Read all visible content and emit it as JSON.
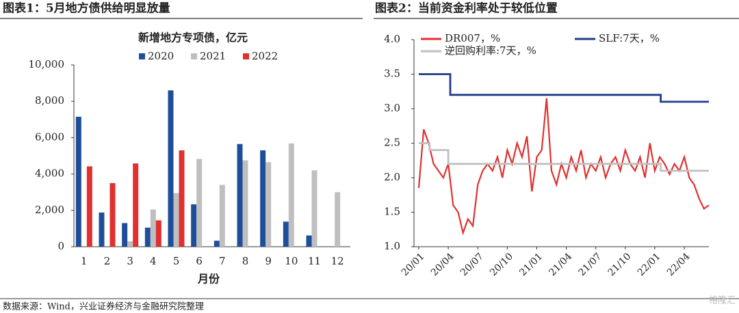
{
  "header_left": "图表1：5月地方债供给明显放量",
  "header_right": "图表2：当前资金利率处于较低位置",
  "source": "数据来源：Wind，兴业证券经济与金融研究院整理",
  "watermark": "格隆汇",
  "chart_data": [
    {
      "type": "bar",
      "title": "新增地方专项债，亿元",
      "xlabel": "月份",
      "categories": [
        "1",
        "2",
        "3",
        "4",
        "5",
        "6",
        "7",
        "8",
        "9",
        "10",
        "11",
        "12"
      ],
      "series": [
        {
          "name": "2020",
          "color": "#1f4e99",
          "values": [
            7150,
            1880,
            1300,
            1050,
            8600,
            2330,
            330,
            5650,
            5300,
            1380,
            620,
            0
          ]
        },
        {
          "name": "2021",
          "color": "#bfbfbf",
          "values": [
            0,
            0,
            300,
            2050,
            2950,
            4830,
            3400,
            4750,
            4650,
            5680,
            4200,
            3000
          ]
        },
        {
          "name": "2022",
          "color": "#e03030",
          "values": [
            4420,
            3500,
            4580,
            1450,
            5300,
            null,
            null,
            null,
            null,
            null,
            null,
            null
          ]
        }
      ],
      "ylim": [
        0,
        10000
      ],
      "yticks": [
        0,
        {
          "value": 2000,
          "label": "2,000"
        },
        {
          "value": 4000,
          "label": "4,000"
        },
        {
          "value": 6000,
          "label": "6,000"
        },
        {
          "value": 8000,
          "label": "8,000"
        },
        {
          "value": 10000,
          "label": "10,000"
        }
      ]
    },
    {
      "type": "line",
      "series": [
        {
          "name": "DR007，%",
          "color": "#e03030",
          "x": [
            0,
            0.5,
            1,
            1.5,
            2,
            2.5,
            3,
            3.5,
            4,
            4.5,
            5,
            5.5,
            6,
            6.5,
            7,
            7.5,
            8,
            8.5,
            9,
            9.5,
            10,
            10.5,
            11,
            11.5,
            12,
            12.5,
            13,
            13.5,
            14,
            14.5,
            15,
            15.5,
            16,
            16.5,
            17,
            17.5,
            18,
            18.5,
            19,
            19.5,
            20,
            20.5,
            21,
            21.5,
            22,
            22.5,
            23,
            23.5,
            24,
            24.5,
            25,
            25.5,
            26,
            26.5,
            27,
            27.5,
            28,
            28.5,
            29,
            29.5
          ],
          "values": [
            1.85,
            2.7,
            2.5,
            2.2,
            2.1,
            2.0,
            2.2,
            1.6,
            1.5,
            1.2,
            1.4,
            1.3,
            1.9,
            2.1,
            2.2,
            2.1,
            2.3,
            2.0,
            2.4,
            2.2,
            2.5,
            2.3,
            2.6,
            1.8,
            2.3,
            2.4,
            3.15,
            2.1,
            1.9,
            2.2,
            2.0,
            2.3,
            2.1,
            2.4,
            2.0,
            2.2,
            2.1,
            2.3,
            2.0,
            2.2,
            2.3,
            2.1,
            2.4,
            2.2,
            2.1,
            2.3,
            2.0,
            2.5,
            2.1,
            2.3,
            2.2,
            2.05,
            2.2,
            2.1,
            2.3,
            2.0,
            1.9,
            1.7,
            1.55,
            1.6
          ]
        },
        {
          "name": "SLF:7天，%",
          "color": "#1f3a8a",
          "x": [
            0,
            3.2,
            3.2,
            24.6,
            24.6,
            29.5
          ],
          "values": [
            3.5,
            3.5,
            3.2,
            3.2,
            3.1,
            3.1
          ]
        },
        {
          "name": "逆回购利率:7天，%",
          "color": "#bfbfbf",
          "x": [
            0,
            1.1,
            1.1,
            3.0,
            3.0,
            24.6,
            24.6,
            29.5
          ],
          "values": [
            2.5,
            2.5,
            2.4,
            2.4,
            2.2,
            2.2,
            2.1,
            2.1
          ]
        }
      ],
      "xlim": [
        0,
        29.5
      ],
      "xticks": [
        {
          "value": 0,
          "label": "20/01"
        },
        {
          "value": 3,
          "label": "20/04"
        },
        {
          "value": 6,
          "label": "20/07"
        },
        {
          "value": 9,
          "label": "20/10"
        },
        {
          "value": 12,
          "label": "21/01"
        },
        {
          "value": 15,
          "label": "21/04"
        },
        {
          "value": 18,
          "label": "21/07"
        },
        {
          "value": 21,
          "label": "21/10"
        },
        {
          "value": 24,
          "label": "22/01"
        },
        {
          "value": 27,
          "label": "22/04"
        }
      ],
      "ylim": [
        1.0,
        4.0
      ],
      "yticks": [
        {
          "value": 1,
          "label": "1.0"
        },
        1.5,
        {
          "value": 2,
          "label": "2.0"
        },
        2.5,
        {
          "value": 3,
          "label": "3.0"
        },
        3.5,
        {
          "value": 4,
          "label": "4.0"
        }
      ]
    }
  ]
}
